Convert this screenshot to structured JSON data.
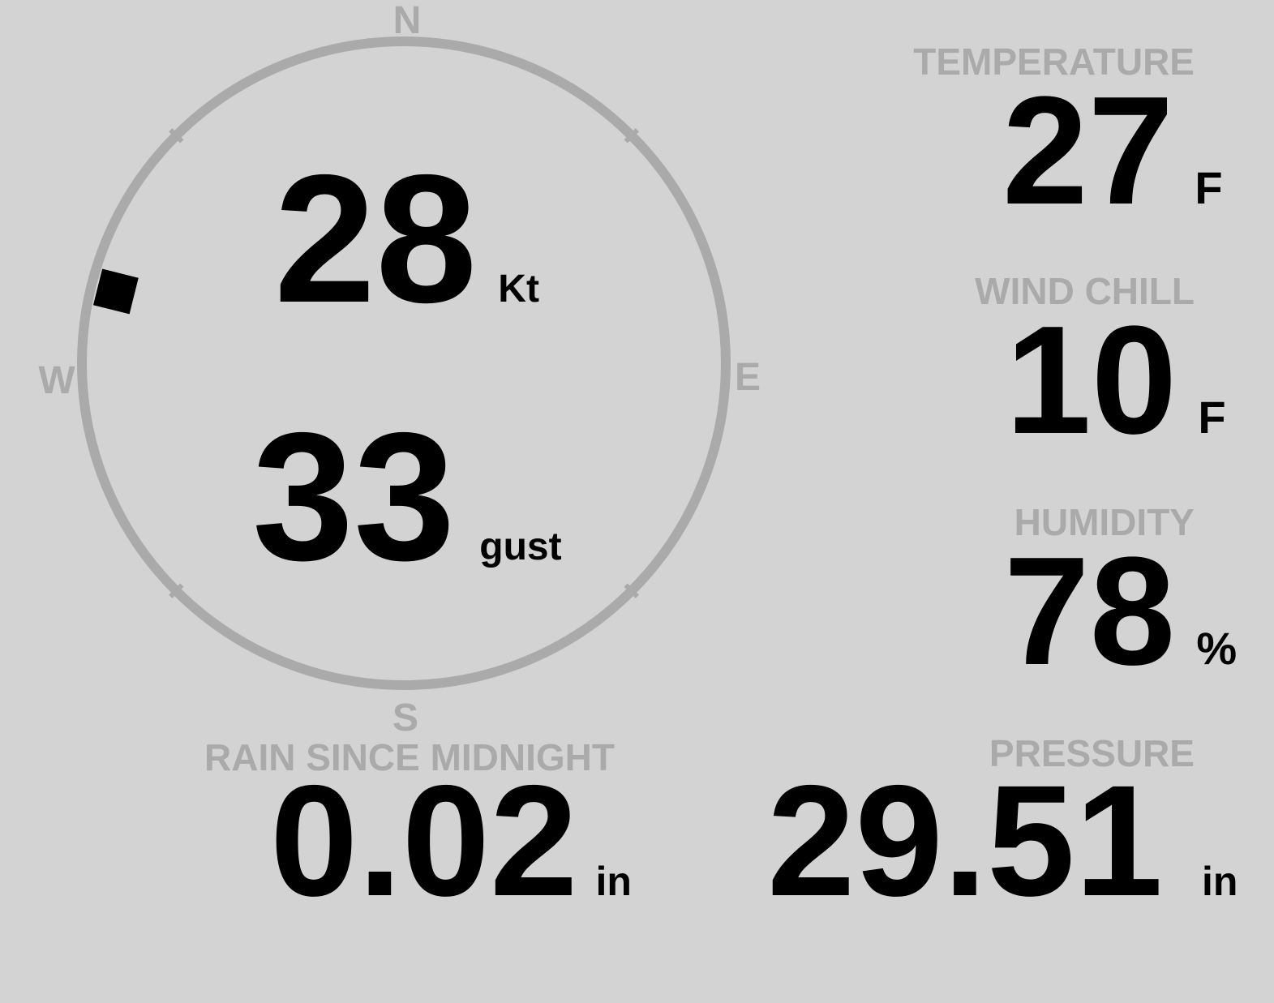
{
  "colors": {
    "background": "#d3d3d3",
    "label": "#aaaaaa",
    "value": "#000000",
    "ring": "#aaaaaa"
  },
  "compass": {
    "north": "N",
    "east": "E",
    "south": "S",
    "west": "W",
    "wind_direction_deg": 284
  },
  "wind": {
    "speed": "28",
    "speed_unit": "Kt",
    "gust": "33",
    "gust_unit": "gust"
  },
  "temperature": {
    "label": "TEMPERATURE",
    "value": "27",
    "unit": "F"
  },
  "wind_chill": {
    "label": "WIND CHILL",
    "value": "10",
    "unit": "F"
  },
  "humidity": {
    "label": "HUMIDITY",
    "value": "78",
    "unit": "%"
  },
  "rain": {
    "label": "RAIN SINCE MIDNIGHT",
    "value": "0.02",
    "unit": "in"
  },
  "pressure": {
    "label": "PRESSURE",
    "value": "29.51",
    "unit": "in"
  }
}
